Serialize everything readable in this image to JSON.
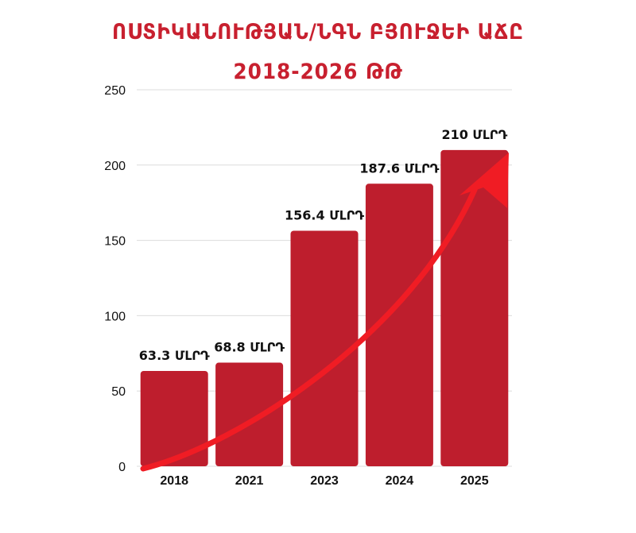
{
  "chart_data": {
    "type": "bar",
    "title_line1": "ՈՍՏԻԿԱՆՈՒԹՅԱՆ/ՆԳՆ ԲՅՈՒՋԵԻ ԱՃԸ",
    "title_line2": "2018-2026 ԹԹ",
    "categories": [
      "2018",
      "2021",
      "2023",
      "2024",
      "2025"
    ],
    "values": [
      63.3,
      68.8,
      156.4,
      187.6,
      210
    ],
    "data_labels": [
      "63.3 ՄԼՐԴ",
      "68.8 ՄԼՐԴ",
      "156.4 ՄԼՐԴ",
      "187.6 ՄԼՐԴ",
      "210 ՄԼՐԴ"
    ],
    "yticks": [
      "0",
      "50",
      "100",
      "150",
      "200",
      "250"
    ],
    "ylim": [
      0,
      250
    ],
    "grid": true,
    "xlabel": "",
    "ylabel": "",
    "bar_color": "#be1e2d",
    "arrow_color": "#f01c24"
  }
}
